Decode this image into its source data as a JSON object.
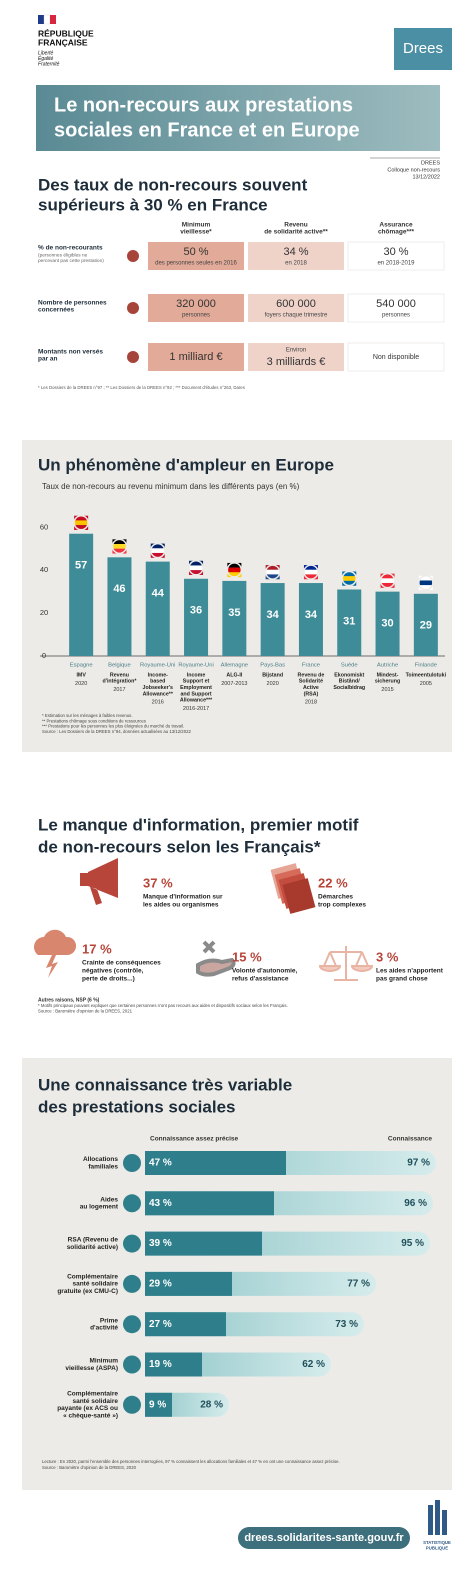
{
  "header": {
    "republic": [
      "RÉPUBLIQUE",
      "FRANÇAISE"
    ],
    "motto": [
      "Liberté",
      "Égalité",
      "Fraternité"
    ],
    "logo": "Drees"
  },
  "banner": {
    "title": [
      "Le non-recours aux prestations",
      "sociales en France et en Europe"
    ]
  },
  "meta": [
    "DREES",
    "Colloque non-recours",
    "13/12/2022"
  ],
  "section1": {
    "title": [
      "Des taux de non-recours souvent",
      "supérieurs à 30 % en France"
    ],
    "columns": [
      [
        "Minimum",
        "vieillesse*"
      ],
      [
        "Revenu",
        "de solidarité active**"
      ],
      [
        "Assurance",
        "chômage***"
      ]
    ],
    "rows": [
      {
        "label": [
          "% de non-recourants"
        ],
        "sublabel": [
          "(personnes éligibles ne",
          "percevant pas cette prestation)"
        ],
        "cells": [
          [
            "50 %",
            "des personnes seules en 2016"
          ],
          [
            "34 %",
            "en 2018"
          ],
          [
            "30 %",
            "en 2018-2019"
          ]
        ]
      },
      {
        "label": [
          "Nombre de personnes",
          "concernées"
        ],
        "sublabel": [],
        "cells": [
          [
            "320 000",
            "personnes"
          ],
          [
            "600 000",
            "foyers chaque trimestre"
          ],
          [
            "540 000",
            "personnes"
          ]
        ]
      },
      {
        "label": [
          "Montants non versés",
          "par an"
        ],
        "sublabel": [],
        "cells": [
          [
            "1 milliard €"
          ],
          [
            "Environ",
            "3 milliards €"
          ],
          [
            "Non disponible"
          ]
        ]
      }
    ],
    "footnote": "* Les Dossiers de la DREES n°97 ; ** Les Dossiers de la DREES n°92 ; *** Document d'études n°263, Dares"
  },
  "section2": {
    "title": "Un phénomène d'ampleur en Europe",
    "subtitle": "Taux de non-recours au revenu minimum dans les différents pays (en %)",
    "chart": {
      "type": "bar",
      "categories": [
        "Espagne",
        "Belgique",
        "Royaume-Uni",
        "Royaume-Uni",
        "Allemagne",
        "Pays-Bas",
        "France",
        "Suède",
        "Autriche",
        "Finlande"
      ],
      "programs": [
        [
          "IMV"
        ],
        [
          "Revenu",
          "d'intégration*"
        ],
        [
          "Income-",
          "based",
          "Jobseeker's",
          "Allowance**"
        ],
        [
          "Income",
          "Support et",
          "Employment",
          "and Support",
          "Allowance***"
        ],
        [
          "ALG-II"
        ],
        [
          "Bijstand"
        ],
        [
          "Revenu de",
          "Solidarité",
          "Active",
          "(RSA)"
        ],
        [
          "Ekonomiskt",
          "Bistånd/",
          "Socialbidrag"
        ],
        [
          "Mindest-",
          "sicherung"
        ],
        [
          "Toimeentulotuki"
        ]
      ],
      "years": [
        "2020",
        "2017",
        "2016",
        "2016-2017",
        "2007-2013",
        "2020",
        "2018",
        null,
        "2015",
        "2005"
      ],
      "values": [
        57,
        46,
        44,
        36,
        35,
        34,
        34,
        31,
        30,
        29
      ],
      "color": "#3d8c98",
      "ylim": [
        0,
        62
      ],
      "yticks": [
        0,
        20,
        40,
        60
      ],
      "grid": false
    },
    "notes": [
      "* Estimation sur les ménages à faibles revenus.",
      "** Prestations chômage sous conditions de ressources",
      "*** Prestations pour les personnes les plus éloignées du marché du travail.",
      "Source : Les Dossiers de la DREES n°94, données actualisées au 13/12/2022"
    ]
  },
  "section3": {
    "title": [
      "Le manque d'information, premier motif",
      "de non-recours selon les Français*"
    ],
    "items": [
      {
        "value": "37 %",
        "text": [
          "Manque d'information sur",
          "les aides ou organismes"
        ]
      },
      {
        "value": "22 %",
        "text": [
          "Démarches",
          "trop complexes"
        ]
      },
      {
        "value": "17 %",
        "text": [
          "Crainte de conséquences",
          "négatives (contrôle,",
          "perte de droits...)"
        ]
      },
      {
        "value": "15 %",
        "text": [
          "Volonté d'autonomie,",
          "refus d'assistance"
        ]
      },
      {
        "value": "3 %",
        "text": [
          "Les aides n'apportent",
          "pas grand chose"
        ]
      }
    ],
    "other": "Autres raisons, NSP (6 %)",
    "notes": [
      "* Motifs principaux pouvant expliquer que certaines personnes n'ont pas recours aux aides et dispositifs sociaux selon les Français.",
      "Source : Baromètre d'opinion de la DREES, 2021"
    ]
  },
  "section4": {
    "title": [
      "Une connaissance très variable",
      "des prestations sociales"
    ],
    "chart": {
      "type": "hbar",
      "categories": [
        [
          "Allocations",
          "familiales"
        ],
        [
          "Aides",
          "au logement"
        ],
        [
          "RSA (Revenu de",
          "solidarité active)"
        ],
        [
          "Complémentaire",
          "santé solidaire",
          "gratuite (ex CMU-C)"
        ],
        [
          "Prime",
          "d'activité"
        ],
        [
          "Minimum",
          "vieillesse (ASPA)"
        ],
        [
          "Complémentaire",
          "santé solidaire",
          "payante (ex ACS ou",
          "« chèque-santé »)"
        ]
      ],
      "xlim": [
        0,
        100
      ],
      "series": [
        {
          "name": "Connaissance",
          "color": "#b9dcdc",
          "values": [
            97,
            96,
            95,
            77,
            73,
            62,
            28
          ],
          "value_labels": [
            "97 %",
            "96 %",
            "95 %",
            "77 %",
            "73 %",
            "62 %",
            "28 %"
          ]
        },
        {
          "name": "Connaissance assez précise",
          "color": "#2e7f8b",
          "values": [
            47,
            43,
            39,
            29,
            27,
            19,
            9
          ],
          "value_labels": [
            "47 %",
            "43 %",
            "39 %",
            "29 %",
            "27 %",
            "19 %",
            "9 %"
          ]
        }
      ]
    },
    "notes": [
      "Lecture : En 2020, parmi l'ensemble des personnes interrogées, 97 % connaissent les allocations familiales et 47 % en ont une connaissance assez précise.",
      "Source : Baromètre d'opinion de la DREES, 2020"
    ]
  },
  "footer": {
    "url": "drees.solidarites-sante.gouv.fr",
    "logo": [
      "STATISTIQUE",
      "PUBLIQUE"
    ]
  }
}
